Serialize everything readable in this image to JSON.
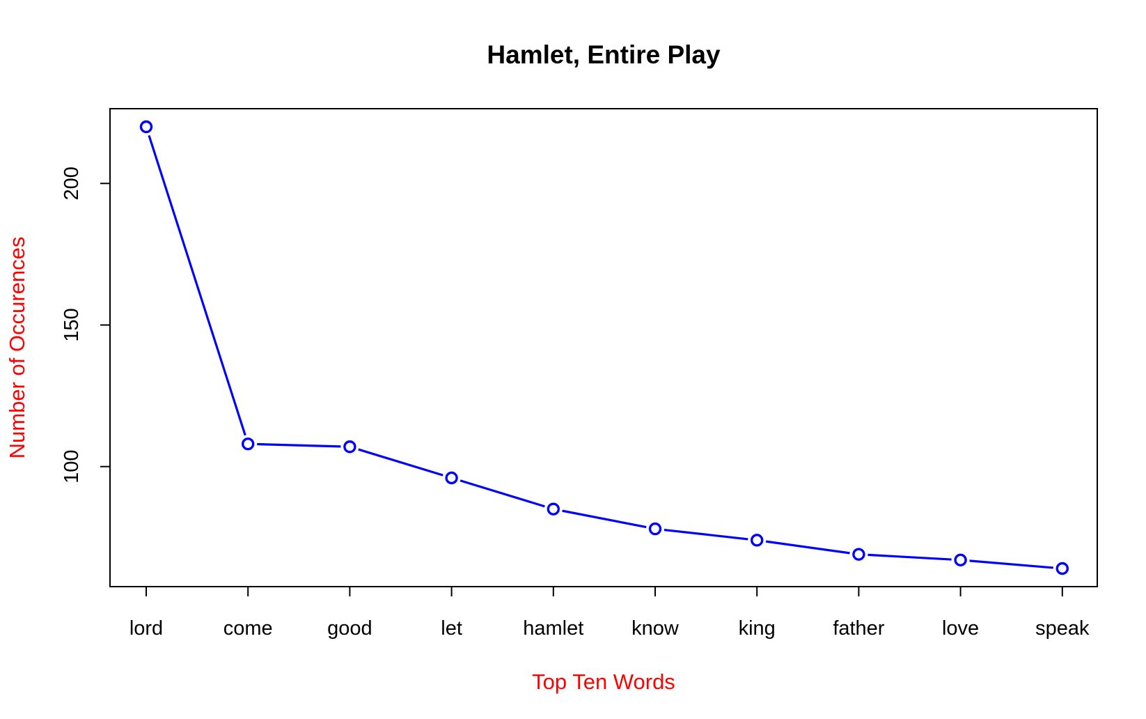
{
  "chart_data": {
    "type": "line",
    "title": "Hamlet, Entire Play",
    "xlabel": "Top Ten Words",
    "ylabel": "Number of Occurences",
    "categories": [
      "lord",
      "come",
      "good",
      "let",
      "hamlet",
      "know",
      "king",
      "father",
      "love",
      "speak"
    ],
    "series": [
      {
        "values": [
          220,
          108,
          107,
          96,
          85,
          78,
          74,
          69,
          67,
          64
        ]
      }
    ],
    "ylim": [
      57.6,
      226.4
    ],
    "yticks": [
      100,
      150,
      200
    ],
    "ytick_labels": [
      "100",
      "150",
      "200"
    ],
    "grid": false,
    "legend": "none",
    "colors": {
      "series": "#0000ff",
      "axis_titles": "#ff0000",
      "axes": "#000000"
    }
  }
}
